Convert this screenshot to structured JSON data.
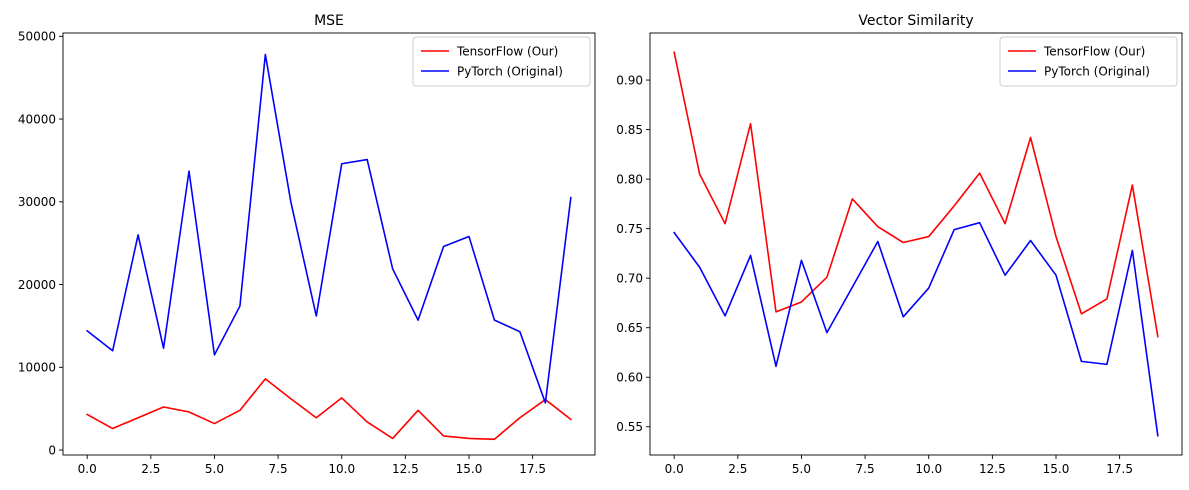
{
  "chart_data": [
    {
      "type": "line",
      "title": "MSE",
      "xlabel": "",
      "ylabel": "",
      "xlim": [
        -0.95,
        19.95
      ],
      "ylim": [
        -600,
        50400
      ],
      "xticks": [
        0,
        2.5,
        5,
        7.5,
        10,
        12.5,
        15,
        17.5
      ],
      "xtick_labels": [
        "0.0",
        "2.5",
        "5.0",
        "7.5",
        "10.0",
        "12.5",
        "15.0",
        "17.5"
      ],
      "yticks": [
        0,
        10000,
        20000,
        30000,
        40000,
        50000
      ],
      "ytick_labels": [
        "0",
        "10000",
        "20000",
        "30000",
        "40000",
        "50000"
      ],
      "grid": false,
      "legend": "top-right",
      "x": [
        0,
        1,
        2,
        3,
        4,
        5,
        6,
        7,
        8,
        9,
        10,
        11,
        12,
        13,
        14,
        15,
        16,
        17,
        18,
        19
      ],
      "series": [
        {
          "name": "TensorFlow (Our)",
          "color": "#ff0000",
          "values": [
            4300,
            2600,
            3900,
            5200,
            4600,
            3200,
            4800,
            8600,
            6200,
            3900,
            6300,
            3400,
            1400,
            4800,
            1700,
            1400,
            1300,
            3900,
            6100,
            3700
          ]
        },
        {
          "name": "PyTorch (Original)",
          "color": "#0000ff",
          "values": [
            14400,
            12000,
            26000,
            12300,
            33700,
            11500,
            17400,
            47800,
            30000,
            16200,
            34600,
            35100,
            21900,
            15700,
            24600,
            25800,
            15700,
            14300,
            5700,
            30500
          ]
        }
      ]
    },
    {
      "type": "line",
      "title": "Vector Similarity",
      "xlabel": "",
      "ylabel": "",
      "xlim": [
        -0.95,
        19.95
      ],
      "ylim": [
        0.5215,
        0.9475
      ],
      "xticks": [
        0,
        2.5,
        5,
        7.5,
        10,
        12.5,
        15,
        17.5
      ],
      "xtick_labels": [
        "0.0",
        "2.5",
        "5.0",
        "7.5",
        "10.0",
        "12.5",
        "15.0",
        "17.5"
      ],
      "yticks": [
        0.55,
        0.6,
        0.65,
        0.7,
        0.75,
        0.8,
        0.85,
        0.9
      ],
      "ytick_labels": [
        "0.55",
        "0.60",
        "0.65",
        "0.70",
        "0.75",
        "0.80",
        "0.85",
        "0.90"
      ],
      "grid": false,
      "legend": "top-right",
      "x": [
        0,
        1,
        2,
        3,
        4,
        5,
        6,
        7,
        8,
        9,
        10,
        11,
        12,
        13,
        14,
        15,
        16,
        17,
        18,
        19
      ],
      "series": [
        {
          "name": "TensorFlow (Our)",
          "color": "#ff0000",
          "values": [
            0.928,
            0.805,
            0.755,
            0.856,
            0.666,
            0.676,
            0.701,
            0.78,
            0.752,
            0.736,
            0.742,
            0.773,
            0.806,
            0.755,
            0.842,
            0.742,
            0.664,
            0.679,
            0.794,
            0.641
          ]
        },
        {
          "name": "PyTorch (Original)",
          "color": "#0000ff",
          "values": [
            0.746,
            0.711,
            0.662,
            0.723,
            0.611,
            0.718,
            0.645,
            0.691,
            0.737,
            0.661,
            0.69,
            0.749,
            0.756,
            0.703,
            0.738,
            0.703,
            0.616,
            0.613,
            0.728,
            0.541
          ]
        }
      ]
    }
  ]
}
